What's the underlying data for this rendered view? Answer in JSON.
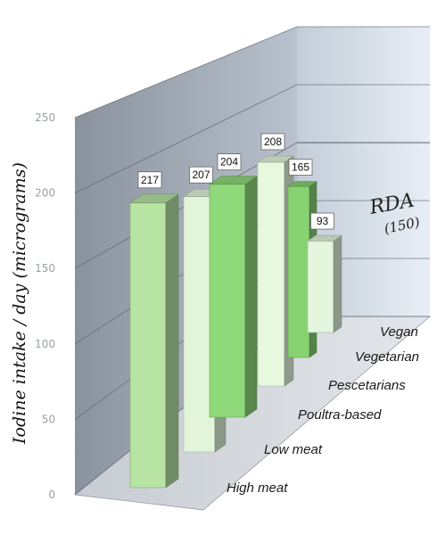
{
  "chart_data": {
    "type": "bar",
    "title": "",
    "xlabel": "",
    "ylabel": "Iodine intake / day (micrograms)",
    "ylim": [
      0,
      250
    ],
    "yticks": [
      "0",
      "50",
      "100",
      "150",
      "200",
      "250"
    ],
    "categories": [
      "High meat",
      "Low meat",
      "Poultra-based",
      "Pescetarians",
      "Vegetarian",
      "Vegan"
    ],
    "values": [
      217,
      207,
      204,
      208,
      165,
      93
    ],
    "value_labels": [
      "217",
      "207",
      "204",
      "208",
      "165",
      "93"
    ],
    "reference_line": {
      "label": "RDA",
      "sublabel": "(150)",
      "value": 150
    },
    "bar_colors": [
      "#b7e3a3",
      "#e2f5da",
      "#8fd97a",
      "#e6f8de",
      "#87d372",
      "#e3f5dc"
    ],
    "style": "3d-perspective",
    "grid": true
  }
}
